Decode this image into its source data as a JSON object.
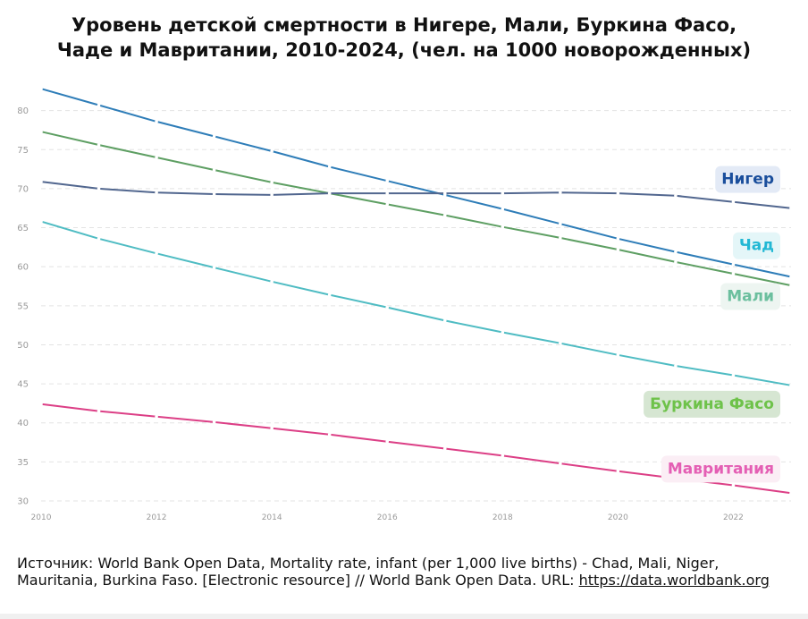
{
  "title_line1": "Уровень детской смертности в Нигере, Мали, Буркина Фасо,",
  "title_line2": "Чаде и Мавритании, 2010-2024,  (чел. на 1000 новорожденных)",
  "source_text": "Источник: World Bank Open Data, Mortality rate, infant (per 1,000 live births) - Chad, Mali, Niger, Mauritania, Burkina Faso. [Electronic resource] // World Bank Open Data. URL:",
  "source_link": "https://data.worldbank.org",
  "chart_data": {
    "type": "line",
    "title": "Уровень детской смертности в Нигере, Мали, Буркина Фасо, Чаде и Мавритании, 2010-2024,  (чел. на 1000 новорожденных)",
    "xlabel": "",
    "ylabel": "",
    "x": [
      2010,
      2011,
      2012,
      2013,
      2014,
      2015,
      2016,
      2017,
      2018,
      2019,
      2020,
      2021,
      2022,
      2023
    ],
    "xlim": [
      2010,
      2023
    ],
    "ylim": [
      30,
      85
    ],
    "x_ticks": [
      2010,
      2012,
      2014,
      2016,
      2018,
      2020,
      2022
    ],
    "y_ticks": [
      30,
      35,
      40,
      45,
      50,
      55,
      60,
      65,
      70,
      75,
      80
    ],
    "grid": "horizontal dashed",
    "series": [
      {
        "name": "Нигер",
        "color": "#2e7db8",
        "label_color": "#1a4e9c",
        "label_bg": "#e3eaf6",
        "values": [
          82.8,
          80.7,
          78.6,
          76.7,
          74.8,
          72.8,
          71.0,
          69.2,
          67.4,
          65.5,
          63.6,
          61.9,
          60.3,
          58.7
        ]
      },
      {
        "name": "Чад",
        "color": "#4fbcc3",
        "label_color": "#22b8d4",
        "label_bg": "#e4f6f8",
        "values": [
          65.8,
          63.6,
          61.7,
          59.9,
          58.1,
          56.4,
          54.8,
          53.1,
          51.6,
          50.2,
          48.7,
          47.3,
          46.1,
          44.8
        ]
      },
      {
        "name": "Мали",
        "color": "#5e9f63",
        "label_color": "#6bbf9e",
        "label_bg": "#edf5f1",
        "values": [
          77.3,
          75.6,
          74.0,
          72.4,
          70.8,
          69.4,
          68.0,
          66.6,
          65.1,
          63.7,
          62.2,
          60.6,
          59.1,
          57.6
        ]
      },
      {
        "name": "Буркина Фасо",
        "color": "#52678f",
        "label_color": "#6ec24a",
        "label_bg": "#d6e6d2",
        "values": [
          70.9,
          70.0,
          69.5,
          69.3,
          69.2,
          69.4,
          69.4,
          69.4,
          69.4,
          69.5,
          69.4,
          69.1,
          68.3,
          67.5
        ]
      },
      {
        "name": "Мавритания",
        "color": "#dc3f86",
        "label_color": "#e45fb4",
        "label_bg": "#fbeef5",
        "values": [
          42.4,
          41.5,
          40.8,
          40.1,
          39.3,
          38.5,
          37.6,
          36.7,
          35.8,
          34.8,
          33.8,
          32.9,
          32.0,
          31.0
        ]
      }
    ],
    "series_labels": [
      {
        "series": "Нигер",
        "text": "Нигер",
        "anchor_value": 71.3
      },
      {
        "series": "Чад",
        "text": "Чад",
        "anchor_value": 62.8
      },
      {
        "series": "Мали",
        "text": "Мали",
        "anchor_value": 56.3
      },
      {
        "series": "Буркина Фасо",
        "text": "Буркина Фасо",
        "anchor_value": 42.5
      },
      {
        "series": "Мавритания",
        "text": "Мавритания",
        "anchor_value": 34.2
      }
    ]
  }
}
